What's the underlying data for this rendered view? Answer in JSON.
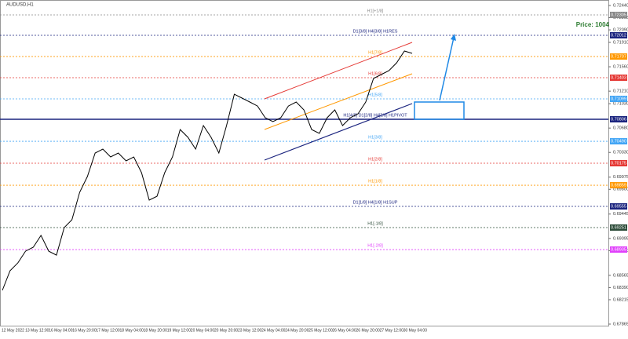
{
  "chart_data": {
    "type": "line",
    "title": "AUDUSD,H1",
    "annotation": "Price: 1004",
    "color": "#000000",
    "values": [
      0.68349,
      0.68631,
      0.68743,
      0.68912,
      0.68969,
      0.69138,
      0.68912,
      0.68856,
      0.69251,
      0.69363,
      0.69758,
      0.69983,
      0.70321,
      0.70378,
      0.70265,
      0.70321,
      0.70209,
      0.70265,
      0.70039,
      0.69645,
      0.69701,
      0.70039,
      0.70265,
      0.70659,
      0.70547,
      0.70378,
      0.70716,
      0.70547,
      0.70321,
      0.70716,
      0.71166,
      0.7111,
      0.71054,
      0.70997,
      0.70828,
      0.70772,
      0.70828,
      0.70997,
      0.71054,
      0.70941,
      0.70659,
      0.70603,
      0.70828,
      0.70941,
      0.70716,
      0.70828,
      0.70885,
      0.71054,
      0.71392,
      0.71448,
      0.71505,
      0.71617,
      0.71786,
      0.71753
    ],
    "time_labels": [
      "12 May 2022",
      "13 May 12:00",
      "16 May 04:00",
      "16 May 20:00",
      "17 May 12:00",
      "18 May 04:00",
      "18 May 20:00",
      "19 May 12:00",
      "20 May 04:00",
      "20 May 20:00",
      "23 May 12:00",
      "24 May 04:00",
      "24 May 20:00",
      "25 May 12:00",
      "26 May 04:00",
      "26 May 20:00",
      "27 May 12:00",
      "30 May 04:00"
    ],
    "ylim": [
      0.67865,
      0.7244
    ],
    "yticks": [
      {
        "value": 0.7244,
        "label": "0.72440"
      },
      {
        "value": 0.72265,
        "label": "0.72265"
      },
      {
        "value": 0.7209,
        "label": "0.72090"
      },
      {
        "value": 0.7191,
        "label": "0.71910"
      },
      {
        "value": 0.7156,
        "label": "0.71560"
      },
      {
        "value": 0.7121,
        "label": "0.71210"
      },
      {
        "value": 0.7103,
        "label": "0.71030"
      },
      {
        "value": 0.7068,
        "label": "0.70680"
      },
      {
        "value": 0.7033,
        "label": "0.70330"
      },
      {
        "value": 0.69975,
        "label": "0.69975"
      },
      {
        "value": 0.698,
        "label": "0.69800"
      },
      {
        "value": 0.69445,
        "label": "0.69445"
      },
      {
        "value": 0.69095,
        "label": "0.69095"
      },
      {
        "value": 0.6892,
        "label": "0.68920"
      },
      {
        "value": 0.68565,
        "label": "0.68565"
      },
      {
        "value": 0.6839,
        "label": "0.68390"
      },
      {
        "value": 0.68215,
        "label": "0.68215"
      },
      {
        "value": 0.67865,
        "label": "0.67865"
      }
    ],
    "levels": [
      {
        "label": "H1[+1/8]",
        "price": {
          "value": 0.72305,
          "label": "0.72305"
        },
        "color": "#888888"
      },
      {
        "label": "D1[3/8] H4[3/8] H1RES",
        "price": {
          "value": 0.72012,
          "label": "0.72012"
        },
        "color": "#1a237e"
      },
      {
        "label": "H1[7/8]",
        "price": {
          "value": 0.71707,
          "label": "0.71707"
        },
        "color": "#ff9800"
      },
      {
        "label": "H1[6/8]",
        "price": {
          "value": 0.71403,
          "label": "0.71403"
        },
        "color": "#e53935"
      },
      {
        "label": "H1[5/8]",
        "price": {
          "value": 0.71099,
          "label": "0.71099"
        },
        "color": "#42a5f5"
      },
      {
        "label": "H1[4/8] D1[2/8] H4[2/8] H1PIVOT",
        "price": {
          "value": 0.70806,
          "label": "0.70806"
        },
        "color": "#1a237e"
      },
      {
        "label": "H1[3/8]",
        "price": {
          "value": 0.7049,
          "label": "0.70490"
        },
        "color": "#42a5f5"
      },
      {
        "label": "H1[2/8]",
        "price": {
          "value": 0.70175,
          "label": "0.70175"
        },
        "color": "#e53935"
      },
      {
        "label": "H1[1/8]",
        "price": {
          "value": 0.69859,
          "label": "0.69859"
        },
        "color": "#ff9800"
      },
      {
        "label": "D1[1/8] H4[1/8] H1SUP",
        "price": {
          "value": 0.69555,
          "label": "0.69555"
        },
        "color": "#1a237e"
      },
      {
        "label": "H1[-1/8]",
        "price": {
          "value": 0.69251,
          "label": "0.69251"
        },
        "color": "#2e4d3a"
      },
      {
        "label": "H1[-2/8]",
        "price": {
          "value": 0.68935,
          "label": "0.68935"
        },
        "color": "#e040fb"
      }
    ]
  }
}
